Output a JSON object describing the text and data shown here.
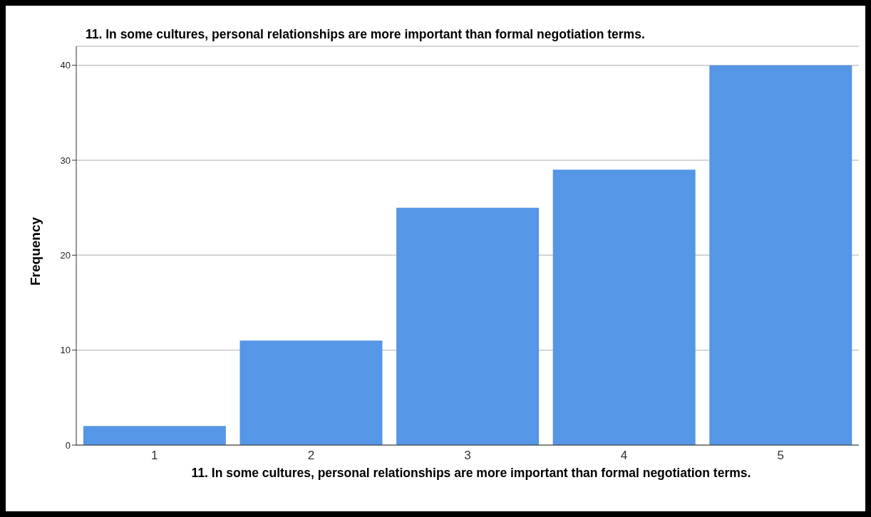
{
  "chart_data": {
    "type": "bar",
    "title": "11. In some cultures, personal relationships are more important than formal negotiation terms.",
    "xlabel": "11. In some cultures, personal relationships are more important than formal negotiation terms.",
    "ylabel": "Frequency",
    "categories": [
      "1",
      "2",
      "3",
      "4",
      "5"
    ],
    "values": [
      2,
      11,
      25,
      29,
      40
    ],
    "color": "#5596e6",
    "ylim": [
      0,
      42
    ],
    "yticks": [
      0,
      10,
      20,
      30,
      40
    ],
    "grid": "y"
  }
}
